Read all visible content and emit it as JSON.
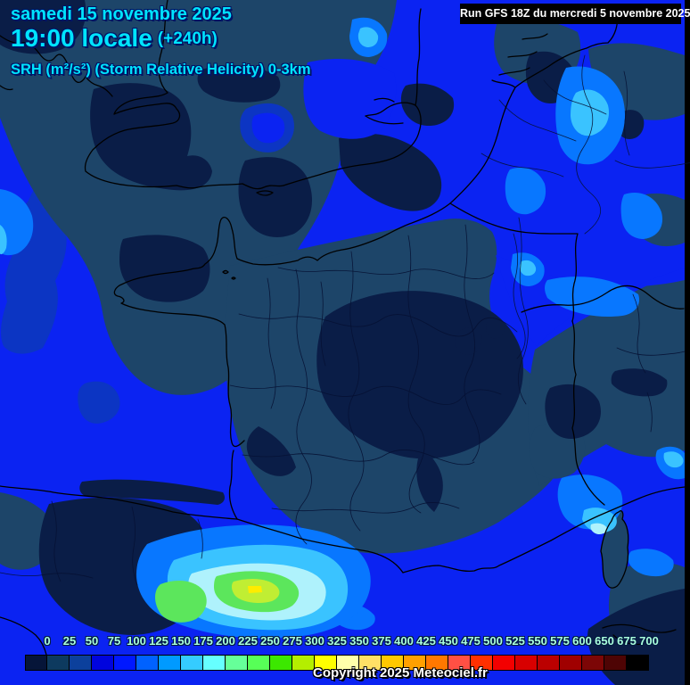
{
  "header": {
    "date": "samedi 15 novembre 2025",
    "time": "19:00 locale",
    "offset": "(+240h)",
    "parameter": "SRH (m²/s²) (Storm Relative Helicity) 0-3km"
  },
  "run_info": {
    "label": "Run GFS 18Z du mercredi 5 novembre 2025"
  },
  "scale": {
    "values": [
      "0",
      "25",
      "50",
      "75",
      "100",
      "125",
      "150",
      "175",
      "200",
      "225",
      "250",
      "275",
      "300",
      "325",
      "350",
      "375",
      "400",
      "425",
      "450",
      "475",
      "500",
      "525",
      "550",
      "575",
      "600",
      "650",
      "675",
      "700"
    ],
    "colors": [
      "#061539",
      "#0d3a5f",
      "#0c409c",
      "#0004de",
      "#0018ff",
      "#0062ff",
      "#009aff",
      "#35ccff",
      "#66ffff",
      "#66ff99",
      "#57ff57",
      "#3ce800",
      "#b4ee00",
      "#ffff00",
      "#ffffaa",
      "#ffe066",
      "#ffc800",
      "#ffa000",
      "#ff7800",
      "#ff5044",
      "#ff3000",
      "#f30000",
      "#d80000",
      "#bb0000",
      "#a00000",
      "#7c0606",
      "#4e0404",
      "#000000"
    ]
  },
  "copyright": "Copyright 2025 Meteociel.fr",
  "map_palette": {
    "bright": "#0b23f2",
    "slate": "#1d4569",
    "navy": "#0a1d47",
    "royal": "#0c35c3",
    "light": "#0877ff",
    "sky": "#3ac3ff",
    "pale": "#aff2fc",
    "green": "#5ce65c",
    "ygreen": "#c0ee33",
    "yellow": "#ffec00",
    "hdrtext": "#00e4ff",
    "scaletext": "#aaffdd"
  }
}
